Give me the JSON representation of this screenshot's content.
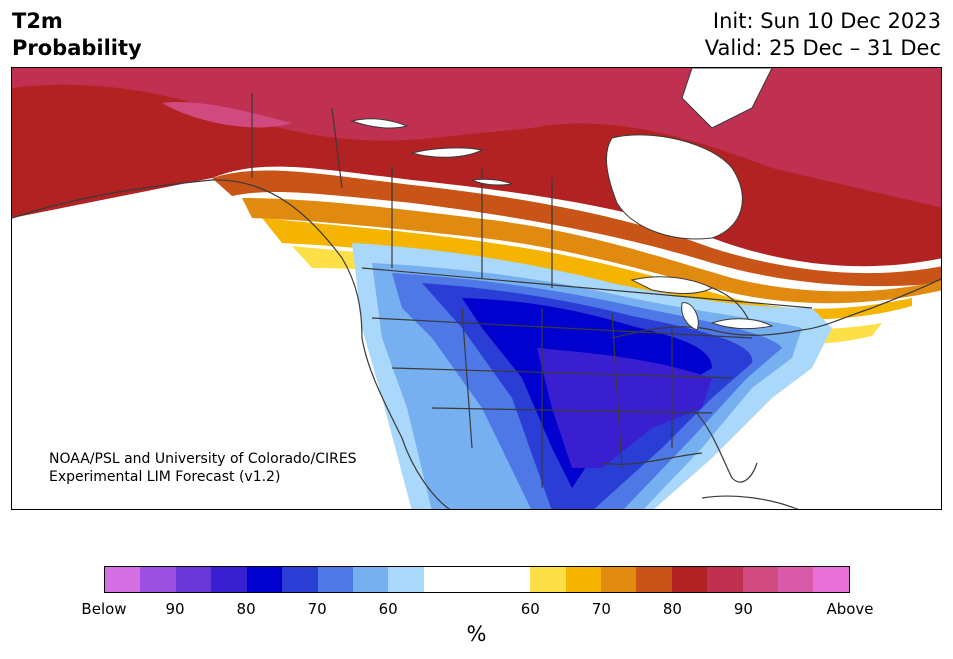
{
  "title": {
    "left_line1": "T2m",
    "left_line2": "Probability",
    "right_line1": "Init: Sun 10 Dec 2023",
    "right_line2": "Valid: 25 Dec – 31 Dec"
  },
  "credit": {
    "line1": "NOAA/PSL and University of Colorado/CIRES",
    "line2": "Experimental LIM Forecast (v1.2)"
  },
  "colorbar": {
    "unit": "%",
    "labels": [
      "Below",
      "90",
      "80",
      "70",
      "60",
      "60",
      "70",
      "80",
      "90",
      "Above"
    ],
    "below_colors": [
      "#d46fe6",
      "#9b4fe0",
      "#6a38d8",
      "#3a1fd0",
      "#0000cf",
      "#2a3ed6",
      "#4d78e6",
      "#76b0f0",
      "#aad8fa"
    ],
    "neutral_color": "#ffffff",
    "above_colors": [
      "#fde047",
      "#f4b400",
      "#e08a10",
      "#c85418",
      "#b22222",
      "#c03050",
      "#d04a80",
      "#d85aa8",
      "#e870d8"
    ]
  },
  "map": {
    "colors": {
      "land_neutral": "#ffffff",
      "water": "#ffffff",
      "border": "#3a3a3a"
    }
  }
}
